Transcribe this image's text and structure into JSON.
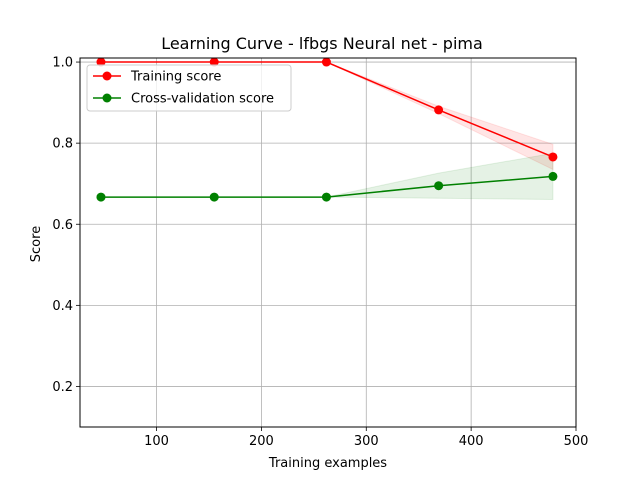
{
  "chart_data": {
    "type": "line",
    "title": "Learning Curve - lfbgs Neural net - pima",
    "xlabel": "Training examples",
    "ylabel": "Score",
    "xlim": [
      27,
      500
    ],
    "ylim": [
      0.1,
      1.01
    ],
    "xticks": [
      100,
      200,
      300,
      400,
      500
    ],
    "yticks": [
      0.2,
      0.4,
      0.6,
      0.8,
      1.0
    ],
    "grid": true,
    "legend_position": "upper-left",
    "series": [
      {
        "name": "Training score",
        "color": "#ff0000",
        "x": [
          47,
          155,
          262,
          369,
          478
        ],
        "y": [
          1.0,
          1.0,
          1.0,
          0.882,
          0.766
        ],
        "band_lower": [
          1.0,
          1.0,
          1.0,
          0.873,
          0.735
        ],
        "band_upper": [
          1.0,
          1.0,
          1.0,
          0.891,
          0.797
        ]
      },
      {
        "name": "Cross-validation score",
        "color": "#008000",
        "x": [
          47,
          155,
          262,
          369,
          478
        ],
        "y": [
          0.667,
          0.667,
          0.667,
          0.695,
          0.718
        ],
        "band_lower": [
          0.667,
          0.667,
          0.667,
          0.664,
          0.661
        ],
        "band_upper": [
          0.667,
          0.667,
          0.667,
          0.726,
          0.775
        ]
      }
    ]
  }
}
